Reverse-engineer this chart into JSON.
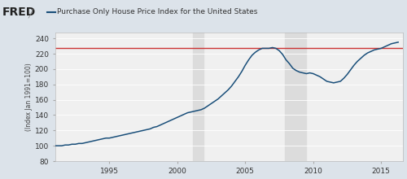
{
  "title": "Purchase Only House Price Index for the United States",
  "ylabel": "(Index Jan 1991=100)",
  "xlim": [
    1991.0,
    2016.6
  ],
  "ylim": [
    80,
    248
  ],
  "yticks": [
    80,
    100,
    120,
    140,
    160,
    180,
    200,
    220,
    240
  ],
  "xticks": [
    1995,
    2000,
    2005,
    2010,
    2015
  ],
  "line_color": "#1a4f7a",
  "red_line_y": 227,
  "recession1_start": 2001.17,
  "recession1_end": 2001.92,
  "recession2_start": 2007.92,
  "recession2_end": 2009.5,
  "recession_color": "#dcdcdc",
  "fig_bg_color": "#dce3ea",
  "plot_bg_color": "#f0f0f0",
  "series": {
    "years": [
      1991.0,
      1991.25,
      1991.5,
      1991.75,
      1992.0,
      1992.25,
      1992.5,
      1992.75,
      1993.0,
      1993.25,
      1993.5,
      1993.75,
      1994.0,
      1994.25,
      1994.5,
      1994.75,
      1995.0,
      1995.25,
      1995.5,
      1995.75,
      1996.0,
      1996.25,
      1996.5,
      1996.75,
      1997.0,
      1997.25,
      1997.5,
      1997.75,
      1998.0,
      1998.25,
      1998.5,
      1998.75,
      1999.0,
      1999.25,
      1999.5,
      1999.75,
      2000.0,
      2000.25,
      2000.5,
      2000.75,
      2001.0,
      2001.25,
      2001.5,
      2001.75,
      2002.0,
      2002.25,
      2002.5,
      2002.75,
      2003.0,
      2003.25,
      2003.5,
      2003.75,
      2004.0,
      2004.25,
      2004.5,
      2004.75,
      2005.0,
      2005.25,
      2005.5,
      2005.75,
      2006.0,
      2006.25,
      2006.5,
      2006.75,
      2007.0,
      2007.25,
      2007.5,
      2007.75,
      2008.0,
      2008.25,
      2008.5,
      2008.75,
      2009.0,
      2009.25,
      2009.5,
      2009.75,
      2010.0,
      2010.25,
      2010.5,
      2010.75,
      2011.0,
      2011.25,
      2011.5,
      2011.75,
      2012.0,
      2012.25,
      2012.5,
      2012.75,
      2013.0,
      2013.25,
      2013.5,
      2013.75,
      2014.0,
      2014.25,
      2014.5,
      2014.75,
      2015.0,
      2015.25,
      2015.5,
      2015.75,
      2016.0,
      2016.25
    ],
    "values": [
      100,
      100,
      100,
      101,
      101,
      102,
      102,
      103,
      103,
      104,
      105,
      106,
      107,
      108,
      109,
      110,
      110,
      111,
      112,
      113,
      114,
      115,
      116,
      117,
      118,
      119,
      120,
      121,
      122,
      124,
      125,
      127,
      129,
      131,
      133,
      135,
      137,
      139,
      141,
      143,
      144,
      145,
      146,
      147,
      149,
      152,
      155,
      158,
      161,
      165,
      169,
      173,
      178,
      184,
      190,
      197,
      205,
      212,
      218,
      222,
      225,
      227,
      227,
      227,
      228,
      227,
      224,
      219,
      212,
      207,
      201,
      198,
      196,
      195,
      194,
      195,
      194,
      192,
      190,
      187,
      184,
      183,
      182,
      183,
      184,
      188,
      193,
      199,
      205,
      210,
      214,
      218,
      221,
      223,
      225,
      226,
      227,
      229,
      231,
      233,
      234,
      235
    ]
  }
}
